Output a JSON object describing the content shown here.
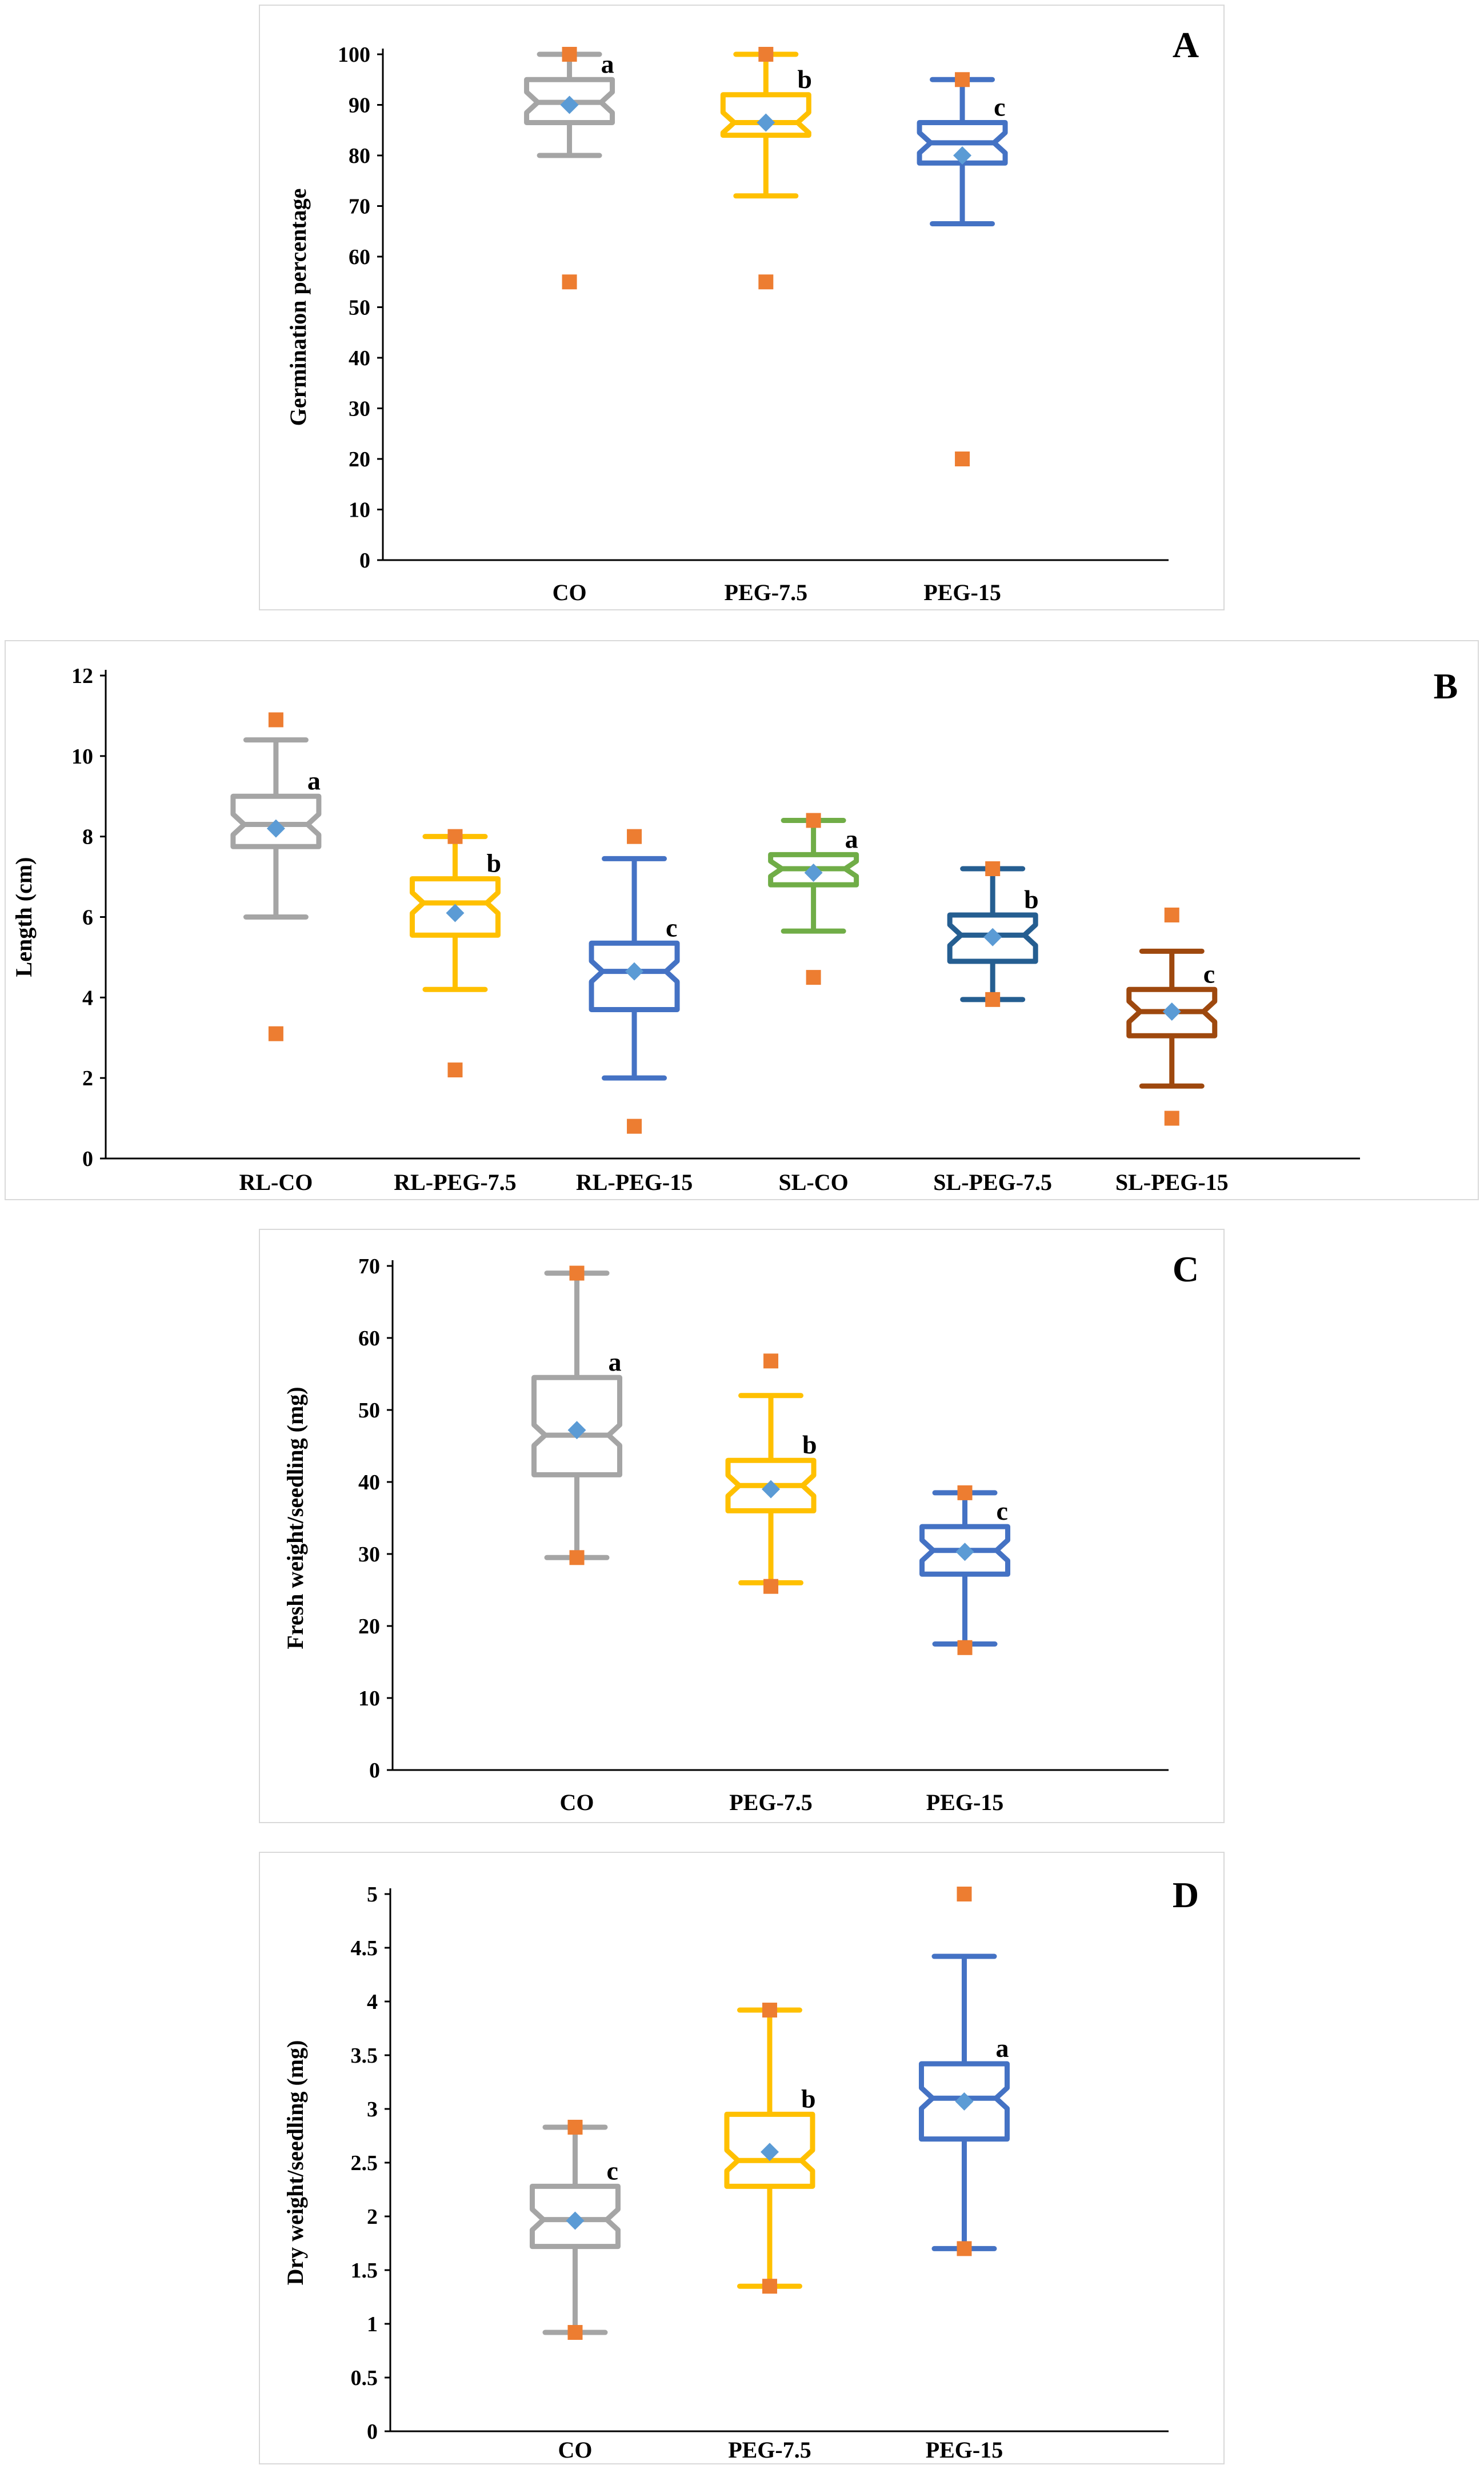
{
  "chart_data": [
    {
      "type": "boxplot",
      "panel_label": "A",
      "ylabel": "Germination percentage",
      "ylim": [
        0,
        100
      ],
      "yticks": [
        0,
        10,
        20,
        30,
        40,
        50,
        60,
        70,
        80,
        90,
        100
      ],
      "series": [
        {
          "name": "CO",
          "color": "#a5a5a5",
          "min": 80,
          "q1": 86.5,
          "median": 90.5,
          "q3": 95,
          "max": 100,
          "mean": 90,
          "outliers_low": [
            55
          ],
          "outliers_high": [
            100
          ],
          "letter": "a"
        },
        {
          "name": "PEG-7.5",
          "color": "#ffc000",
          "min": 72,
          "q1": 84,
          "median": 86.5,
          "q3": 92,
          "max": 100,
          "mean": 86.5,
          "outliers_low": [
            55
          ],
          "outliers_high": [
            100
          ],
          "letter": "b"
        },
        {
          "name": "PEG-15",
          "color": "#4472c4",
          "min": 66.5,
          "q1": 78.5,
          "median": 82.5,
          "q3": 86.5,
          "max": 95,
          "mean": 80,
          "outliers_low": [
            20
          ],
          "outliers_high": [
            95
          ],
          "letter": "c"
        }
      ]
    },
    {
      "type": "boxplot",
      "panel_label": "B",
      "ylabel": "Length (cm)",
      "ylim": [
        0,
        12
      ],
      "yticks": [
        0,
        2,
        4,
        6,
        8,
        10,
        12
      ],
      "series": [
        {
          "name": "RL-CO",
          "color": "#a5a5a5",
          "min": 6,
          "q1": 7.75,
          "median": 8.3,
          "q3": 9,
          "max": 10.4,
          "mean": 8.2,
          "outliers_low": [
            3.1
          ],
          "outliers_high": [
            10.9
          ],
          "letter": "a"
        },
        {
          "name": "RL-PEG-7.5",
          "color": "#ffc000",
          "min": 4.2,
          "q1": 5.55,
          "median": 6.35,
          "q3": 6.95,
          "max": 8,
          "mean": 6.1,
          "outliers_low": [
            2.2
          ],
          "outliers_high": [
            8
          ],
          "letter": "b"
        },
        {
          "name": "RL-PEG-15",
          "color": "#4472c4",
          "min": 2,
          "q1": 3.7,
          "median": 4.65,
          "q3": 5.35,
          "max": 7.45,
          "mean": 4.65,
          "outliers_low": [
            0.8
          ],
          "outliers_high": [
            8
          ],
          "letter": "c"
        },
        {
          "name": "SL-CO",
          "color": "#70ad47",
          "min": 5.65,
          "q1": 6.8,
          "median": 7.2,
          "q3": 7.55,
          "max": 8.4,
          "mean": 7.1,
          "outliers_low": [
            4.5
          ],
          "outliers_high": [
            8.4
          ],
          "letter": "a"
        },
        {
          "name": "SL-PEG-7.5",
          "color": "#255e91",
          "min": 3.95,
          "q1": 4.9,
          "median": 5.55,
          "q3": 6.05,
          "max": 7.2,
          "mean": 5.5,
          "outliers_low": [
            3.95
          ],
          "outliers_high": [
            7.2
          ],
          "letter": "b"
        },
        {
          "name": "SL-PEG-15",
          "color": "#9e480e",
          "min": 1.8,
          "q1": 3.05,
          "median": 3.65,
          "q3": 4.2,
          "max": 5.15,
          "mean": 3.65,
          "outliers_low": [
            1
          ],
          "outliers_high": [
            6.05
          ],
          "letter": "c"
        }
      ]
    },
    {
      "type": "boxplot",
      "panel_label": "C",
      "ylabel": "Fresh weight/seedling (mg)",
      "ylim": [
        0,
        70
      ],
      "yticks": [
        0,
        10,
        20,
        30,
        40,
        50,
        60,
        70
      ],
      "series": [
        {
          "name": "CO",
          "color": "#a5a5a5",
          "min": 29.5,
          "q1": 41,
          "median": 46.5,
          "q3": 54.5,
          "max": 69,
          "mean": 47.2,
          "outliers_low": [
            29.5
          ],
          "outliers_high": [
            69
          ],
          "letter": "a"
        },
        {
          "name": "PEG-7.5",
          "color": "#ffc000",
          "min": 26,
          "q1": 36,
          "median": 39.5,
          "q3": 43,
          "max": 52,
          "mean": 39,
          "outliers_low": [
            25.5
          ],
          "outliers_high": [
            56.8
          ],
          "letter": "b"
        },
        {
          "name": "PEG-15",
          "color": "#4472c4",
          "min": 17.5,
          "q1": 27.2,
          "median": 30.5,
          "q3": 33.8,
          "max": 38.5,
          "mean": 30.3,
          "outliers_low": [
            17
          ],
          "outliers_high": [
            38.5
          ],
          "letter": "c"
        }
      ]
    },
    {
      "type": "boxplot",
      "panel_label": "D",
      "ylabel": "Dry weight/seedling (mg)",
      "ylim": [
        0,
        5
      ],
      "yticks": [
        "0",
        "0.5",
        "1",
        "1.5",
        "2",
        "2.5",
        "3",
        "3.5",
        "4",
        "4.5",
        "5"
      ],
      "series": [
        {
          "name": "CO",
          "color": "#a5a5a5",
          "min": 0.92,
          "q1": 1.72,
          "median": 1.97,
          "q3": 2.28,
          "max": 2.83,
          "mean": 1.96,
          "outliers_low": [
            0.92
          ],
          "outliers_high": [
            2.83
          ],
          "letter": "c"
        },
        {
          "name": "PEG-7.5",
          "color": "#ffc000",
          "min": 1.35,
          "q1": 2.28,
          "median": 2.52,
          "q3": 2.95,
          "max": 3.92,
          "mean": 2.6,
          "outliers_low": [
            1.35
          ],
          "outliers_high": [
            3.92
          ],
          "letter": "b"
        },
        {
          "name": "PEG-15",
          "color": "#4472c4",
          "min": 1.7,
          "q1": 2.72,
          "median": 3.1,
          "q3": 3.42,
          "max": 4.42,
          "mean": 3.07,
          "outliers_low": [
            1.7
          ],
          "outliers_high": [
            5.0
          ],
          "letter": "a"
        }
      ]
    }
  ],
  "style": {
    "mean_marker_color": "#5b9bd5",
    "outlier_color": "#ed7d31"
  }
}
